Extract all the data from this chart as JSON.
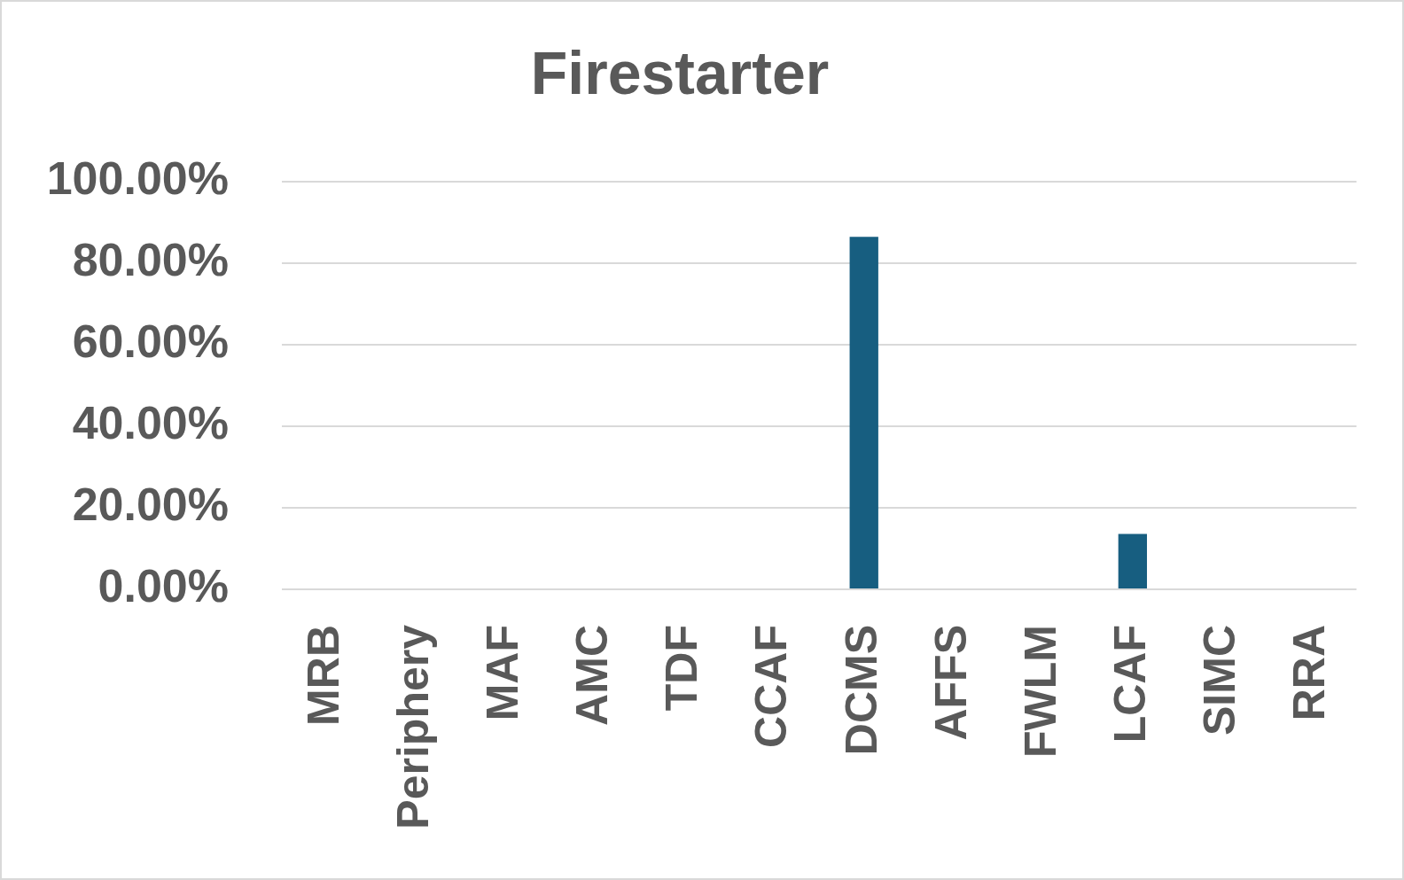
{
  "chart_data": {
    "type": "bar",
    "title": "Firestarter",
    "categories": [
      "MRB",
      "Periphery",
      "MAF",
      "AMC",
      "TDF",
      "CCAF",
      "DCMS",
      "AFFS",
      "FWLM",
      "LCAF",
      "SIMC",
      "RRA"
    ],
    "values": [
      0,
      0,
      0,
      0,
      0,
      0,
      86.4,
      0,
      0,
      13.6,
      0,
      0
    ],
    "color": "#175e80",
    "ylim": [
      0,
      100
    ],
    "yticks": [
      {
        "value": 0,
        "label": "0.00%"
      },
      {
        "value": 20,
        "label": "20.00%"
      },
      {
        "value": 40,
        "label": "40.00%"
      },
      {
        "value": 60,
        "label": "60.00%"
      },
      {
        "value": 80,
        "label": "80.00%"
      },
      {
        "value": 100,
        "label": "100.00%"
      }
    ],
    "grid": "y"
  }
}
